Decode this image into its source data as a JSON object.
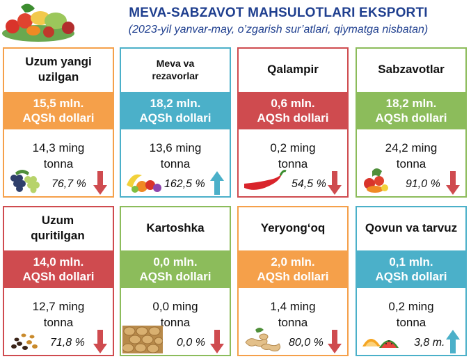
{
  "header": {
    "title": "MEVA-SABZAVOT MAHSULOTLARI EKSPORTI",
    "subtitle": "(2023-yil yanvar-may, o’zgarish sur’atlari, qiymatga nisbatan)"
  },
  "colors": {
    "orange": "#f5a04a",
    "teal": "#4bb0c9",
    "red": "#cf4b4f",
    "green": "#8cbc5b"
  },
  "cards": [
    {
      "name": "Uzum yangi uzilgan",
      "value_line1": "15,5 mln.",
      "value_line2": "AQSh dollari",
      "qty_line1": "14,3 ming",
      "qty_line2": "tonna",
      "pct": "76,7 %",
      "trend": "down",
      "icon": "grapes-icon",
      "color": "orange"
    },
    {
      "name": "Meva va rezavorlar",
      "value_line1": "18,2 mln.",
      "value_line2": "AQSh dollari",
      "qty_line1": "13,6 ming",
      "qty_line2": "tonna",
      "pct": "162,5 %",
      "trend": "up",
      "icon": "fruits-icon",
      "color": "teal"
    },
    {
      "name": "Qalampir",
      "value_line1": "0,6 mln.",
      "value_line2": "AQSh dollari",
      "qty_line1": "0,2 ming",
      "qty_line2": "tonna",
      "pct": "54,5 %",
      "trend": "down",
      "icon": "chili-pepper-icon",
      "color": "red"
    },
    {
      "name": "Sabzavotlar",
      "value_line1": "18,2 mln.",
      "value_line2": "AQSh dollari",
      "qty_line1": "24,2 ming",
      "qty_line2": "tonna",
      "pct": "91,0 %",
      "trend": "down",
      "icon": "vegetables-icon",
      "color": "green"
    },
    {
      "name": "Uzum quritilgan",
      "value_line1": "14,0 mln.",
      "value_line2": "AQSh dollari",
      "qty_line1": "12,7 ming",
      "qty_line2": "tonna",
      "pct": "71,8 %",
      "trend": "down",
      "icon": "raisins-icon",
      "color": "red"
    },
    {
      "name": "Kartoshka",
      "value_line1": "0,0 mln.",
      "value_line2": "AQSh dollari",
      "qty_line1": "0,0 ming",
      "qty_line2": "tonna",
      "pct": "0,0 %",
      "trend": "down",
      "icon": "potatoes-icon",
      "color": "green"
    },
    {
      "name": "Yeryong‘oq",
      "value_line1": "2,0 mln.",
      "value_line2": "AQSh dollari",
      "qty_line1": "1,4 ming",
      "qty_line2": "tonna",
      "pct": "80,0 %",
      "trend": "down",
      "icon": "peanuts-icon",
      "color": "orange"
    },
    {
      "name": "Qovun va tarvuz",
      "value_line1": "0,1 mln.",
      "value_line2": "AQSh dollari",
      "qty_line1": "0,2 ming",
      "qty_line2": "tonna",
      "pct": "3,8 m.",
      "trend": "up",
      "icon": "melon-watermelon-icon",
      "color": "teal"
    }
  ]
}
